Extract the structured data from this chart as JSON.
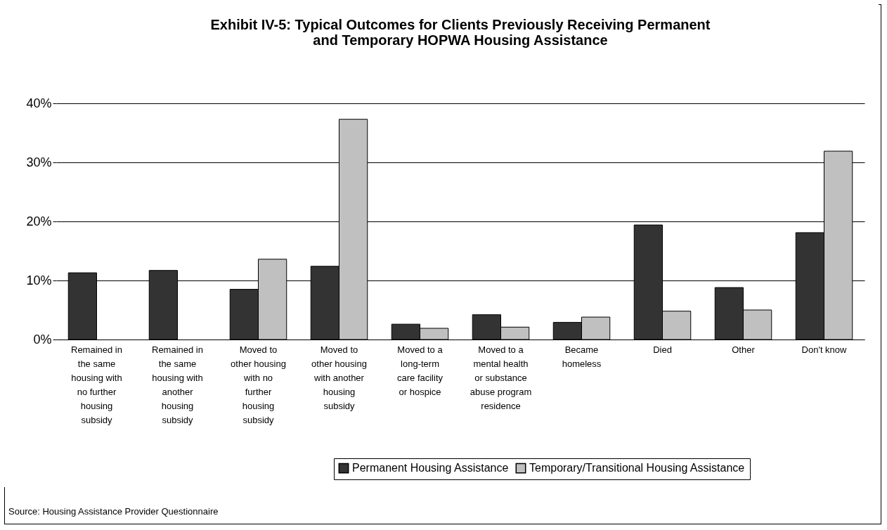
{
  "chart_data": {
    "type": "bar",
    "title": "Exhibit IV-5:  Typical Outcomes for Clients Previously Receiving Permanent and Temporary HOPWA Housing Assistance",
    "categories": [
      "Remained in the same housing with no further housing subsidy",
      "Remained in the same housing with another housing subsidy",
      "Moved to other housing with no further housing subsidy",
      "Moved to other housing with another housing subsidy",
      "Moved to a long-term care facility or hospice",
      "Moved to a mental health or substance abuse program residence",
      "Became homeless",
      "Died",
      "Other",
      "Don't know"
    ],
    "series": [
      {
        "name": "Permanent Housing Assistance",
        "color": "#333333",
        "values": [
          11.3,
          11.7,
          8.5,
          12.4,
          2.6,
          4.2,
          2.9,
          19.4,
          8.8,
          18.1
        ]
      },
      {
        "name": "Temporary/Transitional Housing Assistance",
        "color": "#c0c0c0",
        "values": [
          null,
          null,
          13.6,
          37.3,
          1.9,
          2.1,
          3.8,
          4.8,
          5.0,
          31.9
        ]
      }
    ],
    "ylim": [
      0,
      40
    ],
    "yticks": [
      {
        "value": 0,
        "label": "0%"
      },
      {
        "value": 10,
        "label": "10%"
      },
      {
        "value": 20,
        "label": "20%"
      },
      {
        "value": 30,
        "label": "30%"
      },
      {
        "value": 40,
        "label": "40%"
      }
    ],
    "grid": "y",
    "legend": "bottom right",
    "annotations": [
      "Source: Housing Assistance Provider Questionnaire"
    ]
  }
}
